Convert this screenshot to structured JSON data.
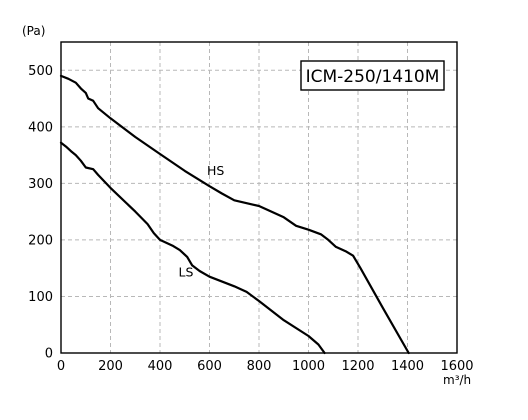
{
  "chart_data": {
    "type": "line",
    "title": "ICM-250/1410M",
    "ylabel": "(Pa)",
    "xlabel": "m³/h",
    "xlim": [
      0,
      1600
    ],
    "ylim": [
      0,
      550
    ],
    "x_ticks": [
      0,
      200,
      400,
      600,
      800,
      1000,
      1200,
      1400,
      1600
    ],
    "y_ticks": [
      0,
      100,
      200,
      300,
      400,
      500
    ],
    "grid": true,
    "series": [
      {
        "name": "HS",
        "points": [
          [
            0,
            490
          ],
          [
            30,
            485
          ],
          [
            60,
            478
          ],
          [
            80,
            468
          ],
          [
            100,
            460
          ],
          [
            110,
            450
          ],
          [
            130,
            446
          ],
          [
            150,
            433
          ],
          [
            200,
            415
          ],
          [
            300,
            382
          ],
          [
            400,
            352
          ],
          [
            500,
            322
          ],
          [
            600,
            295
          ],
          [
            650,
            282
          ],
          [
            700,
            270
          ],
          [
            800,
            260
          ],
          [
            900,
            240
          ],
          [
            950,
            225
          ],
          [
            1000,
            218
          ],
          [
            1050,
            210
          ],
          [
            1080,
            200
          ],
          [
            1110,
            188
          ],
          [
            1150,
            180
          ],
          [
            1180,
            172
          ],
          [
            1210,
            150
          ],
          [
            1300,
            80
          ],
          [
            1405,
            0
          ]
        ]
      },
      {
        "name": "LS",
        "points": [
          [
            0,
            372
          ],
          [
            20,
            365
          ],
          [
            40,
            357
          ],
          [
            60,
            350
          ],
          [
            80,
            340
          ],
          [
            100,
            328
          ],
          [
            130,
            325
          ],
          [
            150,
            315
          ],
          [
            200,
            292
          ],
          [
            300,
            250
          ],
          [
            350,
            228
          ],
          [
            375,
            212
          ],
          [
            400,
            200
          ],
          [
            450,
            190
          ],
          [
            480,
            182
          ],
          [
            510,
            170
          ],
          [
            530,
            155
          ],
          [
            560,
            145
          ],
          [
            600,
            135
          ],
          [
            700,
            118
          ],
          [
            750,
            108
          ],
          [
            800,
            92
          ],
          [
            900,
            58
          ],
          [
            1000,
            30
          ],
          [
            1040,
            15
          ],
          [
            1065,
            0
          ]
        ]
      }
    ],
    "series_label_positions": [
      {
        "name": "HS",
        "at": [
          625,
          315
        ]
      },
      {
        "name": "LS",
        "at": [
          505,
          135
        ]
      }
    ]
  }
}
